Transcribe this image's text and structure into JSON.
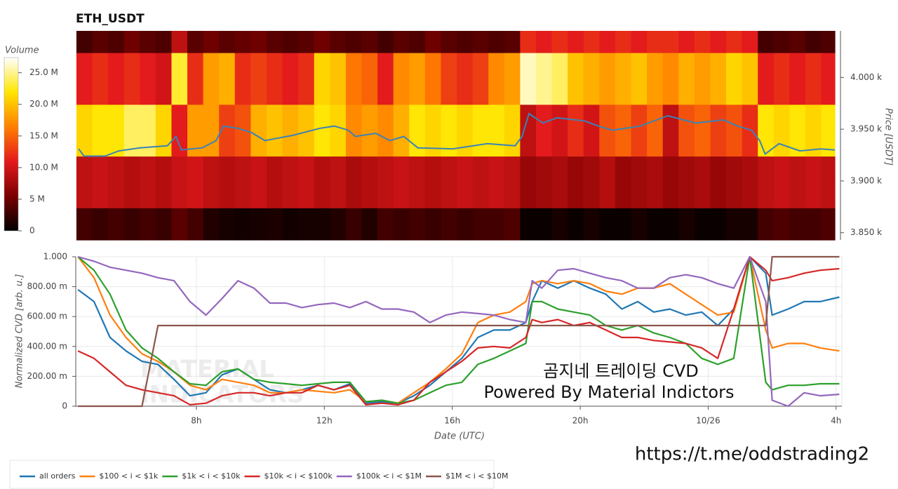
{
  "chart_data": [
    {
      "type": "heatmap",
      "title": "ETH_USDT",
      "x": [
        4.5,
        5.0,
        5.5,
        6.0,
        6.5,
        7.0,
        7.5,
        8.0,
        8.5,
        9.0,
        9.5,
        10.0,
        10.5,
        11.0,
        11.5,
        12.0,
        12.5,
        13.0,
        13.5,
        14.0,
        14.5,
        15.0,
        15.5,
        16.0,
        16.5,
        17.0,
        17.5,
        18.0,
        18.5,
        19.0,
        19.5,
        20.0,
        20.5,
        21.0,
        21.5,
        22.0,
        22.5,
        23.0,
        23.5,
        24.0,
        24.5,
        25.0,
        25.5,
        26.0,
        26.5,
        27.0,
        27.5,
        28.0
      ],
      "bins": [
        3843,
        3874,
        3924,
        3974,
        4024,
        4045
      ],
      "z": [
        [
          3,
          2.5,
          3,
          2.5,
          3,
          2.5,
          4,
          3,
          1.5,
          1,
          0.8,
          1,
          1.2,
          0.8,
          1,
          1,
          1.5,
          2.5,
          1.5,
          3,
          2.5,
          3,
          2.5,
          3,
          2.5,
          3,
          3,
          3.5,
          0.5,
          0.5,
          1,
          0.5,
          1,
          0.5,
          0.5,
          1,
          0.5,
          0.5,
          1,
          0.5,
          0.5,
          1,
          1,
          3,
          3.5,
          3,
          3,
          3.5
        ],
        [
          9,
          9.5,
          9,
          8.5,
          9,
          8.5,
          9.5,
          10,
          9,
          8.5,
          9,
          9.5,
          8.5,
          9,
          9.5,
          8.5,
          9,
          8,
          8.5,
          9,
          9.5,
          9,
          8.5,
          9,
          9.5,
          9,
          9.5,
          9,
          7,
          7.5,
          8,
          7,
          7.5,
          8.5,
          7,
          7.5,
          8,
          7,
          7.5,
          8,
          7,
          7.5,
          8,
          9,
          9.5,
          9,
          9.5,
          9
        ],
        [
          21,
          22,
          22,
          24,
          24,
          21,
          11,
          18,
          18,
          13,
          14,
          19,
          20,
          19,
          20,
          22,
          21,
          17,
          18,
          17,
          19,
          22,
          21,
          22,
          21,
          22,
          22,
          21,
          9,
          11,
          10,
          12,
          10,
          14,
          15,
          13,
          15,
          9,
          14,
          15,
          13,
          14,
          12,
          22,
          21,
          22,
          21,
          22
        ],
        [
          11,
          12,
          11,
          12,
          11,
          10,
          23,
          12,
          18,
          19,
          12,
          13,
          12,
          11,
          12,
          21,
          20,
          16,
          15,
          11,
          17,
          18,
          16,
          13,
          12,
          13,
          17,
          18,
          26,
          25,
          24,
          20,
          19,
          18,
          19,
          20,
          18,
          17,
          19,
          18,
          19,
          21,
          20,
          11,
          12,
          11,
          12,
          11
        ],
        [
          3,
          4,
          3.5,
          5,
          4,
          3.5,
          9,
          4,
          5,
          4,
          4.5,
          5,
          4,
          3.5,
          4,
          5,
          4,
          3.5,
          4,
          3,
          4,
          3.5,
          5,
          4,
          3.5,
          4,
          3.5,
          4,
          12,
          11,
          12,
          11,
          12,
          11,
          12,
          11,
          12,
          12,
          11,
          12,
          11,
          12,
          11,
          3,
          3.5,
          4,
          3,
          3.5
        ]
      ],
      "colorbar": {
        "label": "Volume",
        "lim": [
          0,
          27.4
        ],
        "ticks": [
          0,
          {
            "value": 5,
            "label": "5 M"
          },
          {
            "value": 10,
            "label": "10.0 M"
          },
          {
            "value": 15,
            "label": "15.0 M"
          },
          {
            "value": 20,
            "label": "20.0 M"
          },
          {
            "value": 25,
            "label": "25.0 M"
          }
        ],
        "colors": [
          "#000000",
          "#7a0000",
          "#e31a1c",
          "#ff7f00",
          "#ffe600",
          "#ffffff"
        ]
      },
      "price_line": {
        "color": "#3a83b8",
        "x": [
          4.32,
          4.49,
          5.15,
          5.59,
          6.25,
          7.12,
          7.39,
          7.56,
          8.22,
          8.66,
          8.89,
          9.32,
          9.76,
          10.2,
          11.07,
          11.95,
          12.39,
          12.83,
          13.05,
          13.7,
          14.14,
          14.58,
          15.02,
          16.12,
          17.21,
          18.09,
          18.31,
          18.53,
          18.97,
          19.41,
          20.28,
          20.72,
          21.16,
          22.04,
          22.91,
          23.79,
          24.67,
          25.11,
          25.55,
          25.81,
          25.98,
          26.42,
          27.08,
          27.74,
          28.18
        ],
        "values": [
          3931,
          3924,
          3924,
          3929,
          3932,
          3934,
          3943,
          3930,
          3932,
          3939,
          3953,
          3951,
          3947,
          3939,
          3944,
          3951,
          3953,
          3949,
          3943,
          3946,
          3939,
          3943,
          3932,
          3931,
          3936,
          3934,
          3943,
          3965,
          3956,
          3961,
          3958,
          3953,
          3949,
          3953,
          3963,
          3956,
          3959,
          3953,
          3949,
          3939,
          3926,
          3936,
          3929,
          3931,
          3930
        ]
      },
      "ylabel": "Price [USDT]",
      "xlim": [
        4.23,
        28.18
      ],
      "ylim": [
        3843,
        4045
      ],
      "yticks": [
        {
          "value": 3850,
          "label": "3.850 k"
        },
        {
          "value": 3900,
          "label": "3.900 k"
        },
        {
          "value": 3950,
          "label": "3.950 k"
        },
        {
          "value": 4000,
          "label": "4.000 k"
        }
      ]
    },
    {
      "type": "line",
      "x": [
        4.3,
        4.8,
        5.3,
        5.8,
        6.3,
        6.8,
        7.3,
        7.8,
        8.3,
        8.8,
        9.3,
        9.8,
        10.3,
        10.8,
        11.3,
        11.8,
        12.3,
        12.8,
        13.3,
        13.8,
        14.3,
        14.8,
        15.3,
        15.8,
        16.3,
        16.8,
        17.3,
        17.8,
        18.3,
        18.5,
        18.8,
        19.3,
        19.8,
        20.3,
        20.8,
        21.3,
        21.8,
        22.3,
        22.8,
        23.3,
        23.8,
        24.3,
        24.8,
        25.3,
        25.8,
        26.0,
        26.5,
        27.0,
        27.5,
        28.1
      ],
      "series": [
        {
          "name": "all orders",
          "color": "#1f77b4",
          "values": [
            0.78,
            0.7,
            0.46,
            0.37,
            0.3,
            0.28,
            0.18,
            0.07,
            0.09,
            0.21,
            0.25,
            0.18,
            0.11,
            0.09,
            0.11,
            0.14,
            0.11,
            0.15,
            0.02,
            0.03,
            0.02,
            0.07,
            0.14,
            0.23,
            0.32,
            0.46,
            0.51,
            0.51,
            0.56,
            0.7,
            0.84,
            0.79,
            0.84,
            0.79,
            0.75,
            0.65,
            0.7,
            0.63,
            0.65,
            0.61,
            0.63,
            0.54,
            0.65,
            1.0,
            0.89,
            0.61,
            0.65,
            0.7,
            0.7,
            0.73
          ]
        },
        {
          "name": "$100 < i < $1k",
          "color": "#ff7f0e",
          "values": [
            1.0,
            0.86,
            0.61,
            0.46,
            0.35,
            0.3,
            0.23,
            0.14,
            0.11,
            0.18,
            0.16,
            0.14,
            0.09,
            0.09,
            0.11,
            0.1,
            0.09,
            0.11,
            0.03,
            0.04,
            0.02,
            0.09,
            0.16,
            0.25,
            0.35,
            0.56,
            0.61,
            0.63,
            0.7,
            0.82,
            0.84,
            0.82,
            0.84,
            0.82,
            0.77,
            0.75,
            0.79,
            0.79,
            0.82,
            0.75,
            0.68,
            0.61,
            0.63,
            1.0,
            0.51,
            0.39,
            0.42,
            0.42,
            0.39,
            0.37
          ]
        },
        {
          "name": "$1k < i < $10k",
          "color": "#2ca02c",
          "values": [
            1.0,
            0.91,
            0.75,
            0.51,
            0.39,
            0.32,
            0.23,
            0.15,
            0.14,
            0.23,
            0.25,
            0.18,
            0.16,
            0.15,
            0.14,
            0.15,
            0.16,
            0.16,
            0.03,
            0.04,
            0.02,
            0.04,
            0.09,
            0.14,
            0.16,
            0.28,
            0.32,
            0.37,
            0.42,
            0.7,
            0.7,
            0.65,
            0.63,
            0.61,
            0.54,
            0.51,
            0.54,
            0.49,
            0.46,
            0.42,
            0.32,
            0.28,
            0.32,
            1.0,
            0.16,
            0.11,
            0.14,
            0.14,
            0.15,
            0.15
          ]
        },
        {
          "name": "$10k < i < $100k",
          "color": "#d62728",
          "values": [
            0.37,
            0.32,
            0.23,
            0.14,
            0.11,
            0.09,
            0.07,
            0.01,
            0.02,
            0.07,
            0.09,
            0.09,
            0.07,
            0.09,
            0.09,
            0.14,
            0.11,
            0.14,
            0.01,
            0.02,
            0.01,
            0.04,
            0.16,
            0.23,
            0.3,
            0.39,
            0.4,
            0.39,
            0.46,
            0.58,
            0.56,
            0.58,
            0.54,
            0.56,
            0.51,
            0.46,
            0.46,
            0.44,
            0.43,
            0.42,
            0.39,
            0.32,
            0.65,
            1.0,
            0.91,
            0.84,
            0.86,
            0.89,
            0.91,
            0.92
          ]
        },
        {
          "name": "$100k < i < $1M",
          "color": "#9467bd",
          "values": [
            1.0,
            0.97,
            0.93,
            0.91,
            0.89,
            0.86,
            0.84,
            0.7,
            0.61,
            0.72,
            0.84,
            0.79,
            0.69,
            0.69,
            0.66,
            0.68,
            0.69,
            0.66,
            0.7,
            0.65,
            0.65,
            0.63,
            0.56,
            0.61,
            0.63,
            0.62,
            0.61,
            0.58,
            0.56,
            0.84,
            0.79,
            0.91,
            0.92,
            0.89,
            0.86,
            0.84,
            0.79,
            0.79,
            0.86,
            0.88,
            0.86,
            0.82,
            0.79,
            1.0,
            0.7,
            0.04,
            0.0,
            0.09,
            0.07,
            0.08
          ]
        },
        {
          "name": "$1M < i < $10M",
          "color": "#8c564b",
          "values": [
            0,
            0,
            0,
            0,
            0,
            0.54,
            0.54,
            0.54,
            0.54,
            0.54,
            0.54,
            0.54,
            0.54,
            0.54,
            0.54,
            0.54,
            0.54,
            0.54,
            0.54,
            0.54,
            0.54,
            0.54,
            0.54,
            0.54,
            0.54,
            0.54,
            0.54,
            0.54,
            0.54,
            0.54,
            0.54,
            0.54,
            0.54,
            0.54,
            0.54,
            0.54,
            0.54,
            0.54,
            0.54,
            0.54,
            0.54,
            0.54,
            0.54,
            0.54,
            0.54,
            1.0,
            1.0,
            1.0,
            1.0,
            1.0
          ]
        }
      ],
      "xlabel": "Date (UTC)",
      "ylabel": "Normalized CVD [arb. u.]",
      "xlim": [
        4.23,
        28.18
      ],
      "xticks": [
        {
          "value": 8,
          "label": "8h"
        },
        {
          "value": 12,
          "label": "12h"
        },
        {
          "value": 16,
          "label": "16h"
        },
        {
          "value": 20,
          "label": "20h"
        },
        {
          "value": 24,
          "label": "10/26"
        },
        {
          "value": 28,
          "label": "4h"
        }
      ],
      "ylim": [
        0,
        1
      ],
      "yticks": [
        0,
        {
          "value": 0.2,
          "label": "200.00 m"
        },
        {
          "value": 0.4,
          "label": "400.00 m"
        },
        {
          "value": 0.6,
          "label": "600.00 m"
        },
        {
          "value": 0.8,
          "label": "800.00 m"
        },
        {
          "value": 1,
          "label": "1.000"
        }
      ],
      "grid": true,
      "annotations": [
        "곰지네 트레이딩 CVD",
        "Powered By Material Indictors"
      ],
      "watermark": [
        "MATERIAL",
        "INDICATORS"
      ]
    }
  ],
  "url": "https://t.me/oddstrading2"
}
